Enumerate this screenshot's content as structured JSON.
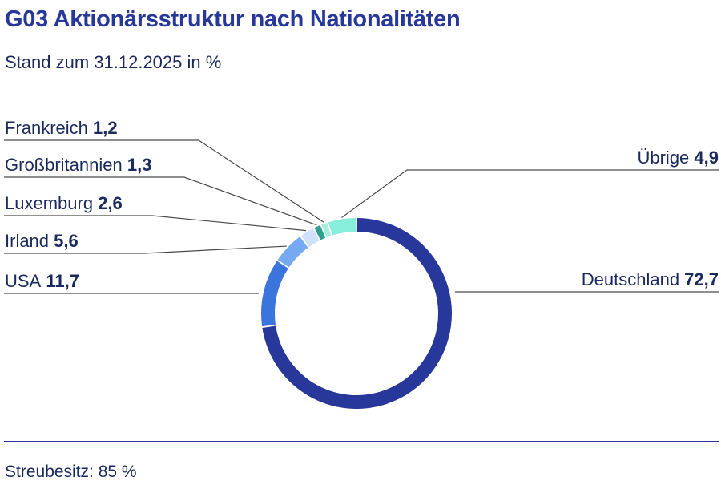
{
  "title": "G03 Aktionärsstruktur nach Nationalitäten",
  "subtitle": "Stand zum 31.12.2025 in %",
  "footer": "Streubesitz: 85 %",
  "chart_data": {
    "type": "pie",
    "title": "G03 Aktionärsstruktur nach Nationalitäten",
    "subtitle": "Stand zum 31.12.2025 in %",
    "series": [
      {
        "name": "Deutschland",
        "value": 72.7,
        "value_label": "72,7",
        "color": "#27389a"
      },
      {
        "name": "USA",
        "value": 11.7,
        "value_label": "11,7",
        "color": "#3b74dc"
      },
      {
        "name": "Irland",
        "value": 5.6,
        "value_label": "5,6",
        "color": "#75a9f3"
      },
      {
        "name": "Luxemburg",
        "value": 2.6,
        "value_label": "2,6",
        "color": "#cfe2fb"
      },
      {
        "name": "Großbritannien",
        "value": 1.3,
        "value_label": "1,3",
        "color": "#2e9e8e"
      },
      {
        "name": "Frankreich",
        "value": 1.2,
        "value_label": "1,2",
        "color": "#a7ece0"
      },
      {
        "name": "Übrige",
        "value": 4.9,
        "value_label": "4,9",
        "color": "#86eedb"
      }
    ]
  }
}
